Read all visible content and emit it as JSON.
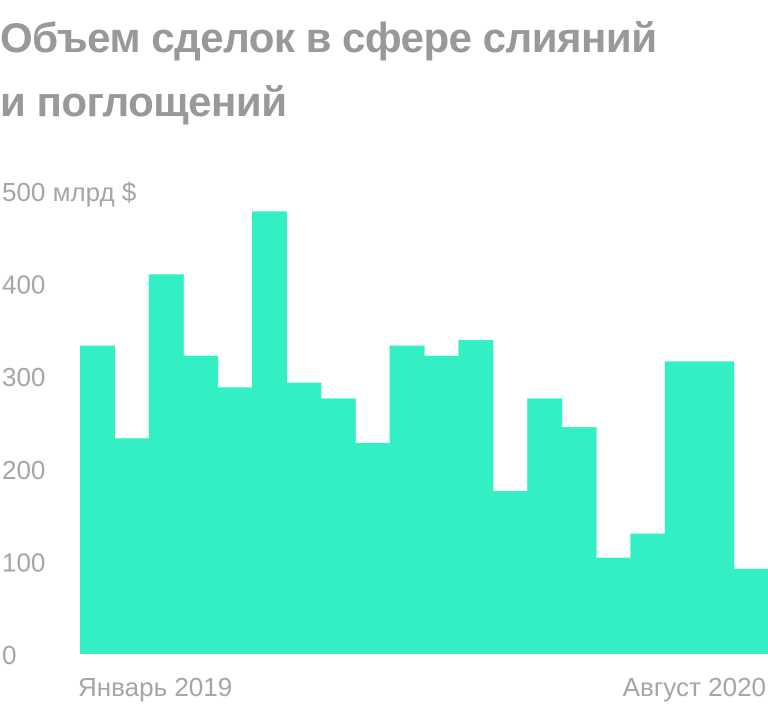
{
  "title": "Объем сделок в сфере слияний и поглощений",
  "chart_data": {
    "type": "bar",
    "title": "Объем сделок в сфере слияний и поглощений",
    "ylabel": "",
    "unit_label": "млрд $",
    "ylim": [
      0,
      500
    ],
    "yticks": [
      0,
      100,
      200,
      300,
      400,
      500
    ],
    "ytick_labels": [
      "0",
      "100",
      "200",
      "300",
      "400",
      "500 млрд $"
    ],
    "categories": [
      "2019-01",
      "2019-02",
      "2019-03",
      "2019-04",
      "2019-05",
      "2019-06",
      "2019-07",
      "2019-08",
      "2019-09",
      "2019-10",
      "2019-11",
      "2019-12",
      "2020-01",
      "2020-02",
      "2020-03",
      "2020-04",
      "2020-05",
      "2020-06",
      "2020-07",
      "2020-08"
    ],
    "x_labels": {
      "first": "Январь 2019",
      "last": "Август 2020"
    },
    "values": [
      333,
      233,
      410,
      322,
      288,
      478,
      293,
      276,
      228,
      333,
      322,
      339,
      176,
      276,
      245,
      104,
      130,
      316,
      316,
      92
    ],
    "bar_color": "#33f0c4",
    "grid": false
  }
}
